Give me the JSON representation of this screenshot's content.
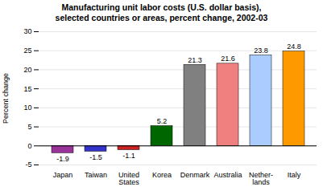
{
  "chart_data": {
    "type": "bar",
    "title": "Manufacturing unit labor costs (U.S. dollar basis),\nselected countries or areas, percent change, 2002-03",
    "ylabel": "Percent change",
    "categories": [
      "Japan",
      "Taiwan",
      "United\nStates",
      "Korea",
      "Denmark",
      "Australia",
      "Nether-\nlands",
      "Italy"
    ],
    "values": [
      -1.9,
      -1.5,
      -1.1,
      5.2,
      21.3,
      21.6,
      23.8,
      24.8
    ],
    "colors": [
      "#993399",
      "#3333cc",
      "#cc2222",
      "#006600",
      "#808080",
      "#f08080",
      "#aaccff",
      "#ff9900"
    ],
    "ylim": [
      -5,
      30
    ],
    "yticks": [
      -5,
      0,
      5,
      10,
      15,
      20,
      25,
      30
    ],
    "grid": true,
    "data_labels": true
  }
}
